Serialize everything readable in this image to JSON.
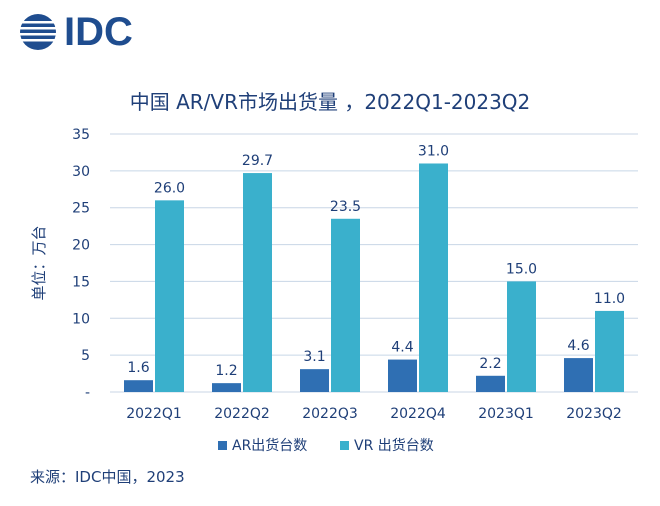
{
  "logo": {
    "text": "IDC"
  },
  "footer": {
    "source": "来源：IDC中国，2023"
  },
  "colors": {
    "ar": "#2f6fb3",
    "vr": "#3ab0cc",
    "text": "#1f3f78",
    "grid": "#c8d6e6"
  },
  "chart_data": {
    "type": "bar",
    "title": "中国 AR/VR市场出货量 ，2022Q1-2023Q2",
    "ylabel": "单位：万台",
    "xlabel": "",
    "ylim": [
      0,
      35
    ],
    "yticks": [
      "-",
      "5",
      "10",
      "15",
      "20",
      "25",
      "30",
      "35"
    ],
    "categories": [
      "2022Q1",
      "2022Q2",
      "2022Q3",
      "2022Q4",
      "2023Q1",
      "2023Q2"
    ],
    "series": [
      {
        "name": "AR出货台数",
        "values": [
          1.6,
          1.2,
          3.1,
          4.4,
          2.2,
          4.6
        ],
        "labels": [
          "1.6",
          "1.2",
          "3.1",
          "4.4",
          "2.2",
          "4.6"
        ]
      },
      {
        "name": "VR 出货台数",
        "values": [
          26.0,
          29.7,
          23.5,
          31.0,
          15.0,
          11.0
        ],
        "labels": [
          "26.0",
          "29.7",
          "23.5",
          "31.0",
          "15.0",
          "11.0"
        ]
      }
    ],
    "grid": true,
    "legend": "bottom"
  }
}
